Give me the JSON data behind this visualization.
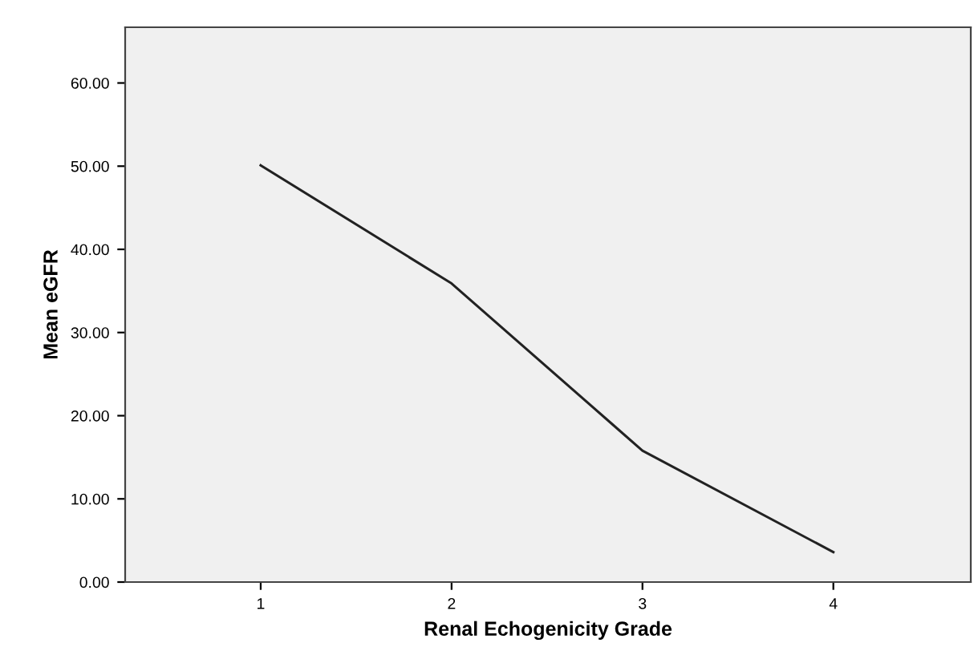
{
  "chart_data": {
    "type": "line",
    "xlabel": "Renal Echogenicity Grade",
    "ylabel": "Mean eGFR",
    "categories": [
      "1",
      "2",
      "3",
      "4"
    ],
    "series": [
      {
        "color": "#222222",
        "values": [
          50.1,
          35.9,
          15.8,
          3.6
        ]
      }
    ],
    "ylim": [
      0,
      66.7
    ],
    "yticks": [
      {
        "value": 0,
        "label": "0.00"
      },
      {
        "value": 10,
        "label": "10.00"
      },
      {
        "value": 20,
        "label": "20.00"
      },
      {
        "value": 30,
        "label": "30.00"
      },
      {
        "value": 40,
        "label": "40.00"
      },
      {
        "value": 50,
        "label": "50.00"
      },
      {
        "value": 60,
        "label": "60.00"
      }
    ],
    "marker": "none",
    "line_style": "solid"
  }
}
